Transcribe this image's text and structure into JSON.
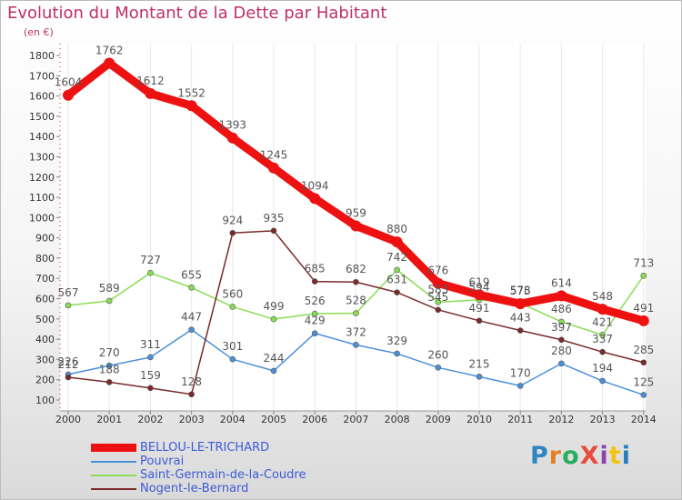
{
  "header": {
    "title": "Evolution du Montant de la Dette par Habitant",
    "unit": "(en €)"
  },
  "logo": {
    "text": "ProXiti",
    "colors": [
      "#2e86c1",
      "#e67e22",
      "#27ae60",
      "#e74c3c",
      "#8e44ad",
      "#f1c40f",
      "#2980b9"
    ]
  },
  "chart_data": {
    "type": "line",
    "title": "Evolution du Montant de la Dette par Habitant",
    "ylabel": "(en €)",
    "xlabel": "",
    "x": [
      "2000",
      "2001",
      "2002",
      "2003",
      "2004",
      "2005",
      "2006",
      "2007",
      "2008",
      "2009",
      "2010",
      "2011",
      "2012",
      "2013",
      "2014"
    ],
    "ylim": [
      100,
      1800
    ],
    "yticks": [
      100,
      200,
      300,
      400,
      500,
      600,
      700,
      800,
      900,
      1000,
      1100,
      1200,
      1300,
      1400,
      1500,
      1600,
      1700,
      1800
    ],
    "legend_position": "bottom-left",
    "series": [
      {
        "name": "BELLOU-LE-TRICHARD",
        "color": "#ee1111",
        "emphasis": true,
        "values": [
          1604,
          1762,
          1612,
          1552,
          1393,
          1245,
          1094,
          959,
          880,
          676,
          619,
          575,
          614,
          548,
          491
        ],
        "labels": [
          "1604",
          "1762",
          "1612",
          "1552",
          "1393",
          "1245",
          "1094",
          "959",
          "880",
          "676",
          "619",
          "575",
          "614",
          "548",
          "491"
        ]
      },
      {
        "name": "Pouvrai",
        "color": "#4a90d9",
        "emphasis": false,
        "values": [
          226,
          270,
          311,
          447,
          301,
          244,
          429,
          372,
          329,
          260,
          215,
          170,
          280,
          194,
          125
        ],
        "labels": [
          "226",
          "270",
          "311",
          "447",
          "301",
          "244",
          "429",
          "372",
          "329",
          "260",
          "215",
          "170",
          "280",
          "194",
          "125"
        ]
      },
      {
        "name": "Saint-Germain-de-la-Coudre",
        "color": "#88dd55",
        "emphasis": false,
        "values": [
          567,
          589,
          727,
          655,
          560,
          499,
          526,
          528,
          742,
          583,
          594,
          578,
          486,
          421,
          713
        ],
        "labels": [
          "567",
          "589",
          "727",
          "655",
          "560",
          "499",
          "526",
          "528",
          "742",
          "583",
          "594",
          "578",
          "486",
          "421",
          "713"
        ]
      },
      {
        "name": "Nogent-le-Bernard",
        "color": "#7a2a2a",
        "emphasis": false,
        "values": [
          212,
          188,
          159,
          128,
          924,
          935,
          685,
          682,
          631,
          545,
          491,
          443,
          397,
          337,
          285
        ],
        "labels": [
          "212",
          "188",
          "159",
          "128",
          "924",
          "935",
          "685",
          "682",
          "631",
          "545",
          "491",
          "443",
          "397",
          "337",
          "285"
        ]
      }
    ]
  }
}
